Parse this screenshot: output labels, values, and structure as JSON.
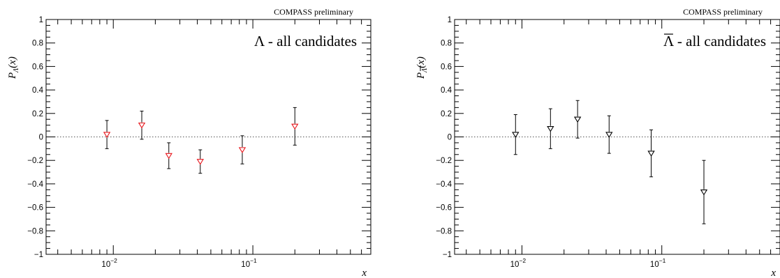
{
  "chart_data": [
    {
      "type": "scatter",
      "header": "COMPASS preliminary",
      "annotation": "Λ - all candidates",
      "ylabel_main": "P",
      "ylabel_sub": "Λ",
      "ylabel_arg": "(x)",
      "xlabel": "x",
      "xscale": "log",
      "xlim": [
        0.0033,
        0.7
      ],
      "ylim": [
        -1,
        1
      ],
      "ytick_values": [
        -1,
        -0.8,
        -0.6,
        -0.4,
        -0.2,
        0,
        0.2,
        0.4,
        0.6,
        0.8,
        1
      ],
      "ytick_labels": [
        "−1",
        "−0.8",
        "−0.6",
        "−0.4",
        "−0.2",
        "0",
        "0.2",
        "0.4",
        "0.6",
        "0.8",
        "1"
      ],
      "xticks_major": [
        {
          "value": 0.01,
          "base": "10",
          "exp": "−2"
        },
        {
          "value": 0.1,
          "base": "10",
          "exp": "−1"
        }
      ],
      "zero_line": true,
      "marker": "open-triangle-down",
      "marker_color": "#e8141a",
      "points": [
        {
          "x": 0.009,
          "y": 0.02,
          "err": 0.12
        },
        {
          "x": 0.016,
          "y": 0.1,
          "err": 0.12
        },
        {
          "x": 0.025,
          "y": -0.16,
          "err": 0.11
        },
        {
          "x": 0.042,
          "y": -0.21,
          "err": 0.1
        },
        {
          "x": 0.084,
          "y": -0.11,
          "err": 0.12
        },
        {
          "x": 0.2,
          "y": 0.09,
          "err": 0.16
        }
      ]
    },
    {
      "type": "scatter",
      "header": "COMPASS preliminary",
      "annotation": "Λ - all candidates",
      "annotation_overline": true,
      "ylabel_main": "P",
      "ylabel_sub": "Λ",
      "ylabel_sub_overline": true,
      "ylabel_arg": "(x)",
      "xlabel": "x",
      "xscale": "log",
      "xlim": [
        0.0033,
        0.7
      ],
      "ylim": [
        -1,
        1
      ],
      "ytick_values": [
        -1,
        -0.8,
        -0.6,
        -0.4,
        -0.2,
        0,
        0.2,
        0.4,
        0.6,
        0.8,
        1
      ],
      "ytick_labels": [
        "−1",
        "−0.8",
        "−0.6",
        "−0.4",
        "−0.2",
        "0",
        "0.2",
        "0.4",
        "0.6",
        "0.8",
        "1"
      ],
      "xticks_major": [
        {
          "value": 0.01,
          "base": "10",
          "exp": "−2"
        },
        {
          "value": 0.1,
          "base": "10",
          "exp": "−1"
        }
      ],
      "zero_line": true,
      "marker": "open-triangle-down",
      "marker_color": "#000000",
      "points": [
        {
          "x": 0.009,
          "y": 0.02,
          "err": 0.17
        },
        {
          "x": 0.016,
          "y": 0.07,
          "err": 0.17
        },
        {
          "x": 0.025,
          "y": 0.15,
          "err": 0.16
        },
        {
          "x": 0.042,
          "y": 0.02,
          "err": 0.16
        },
        {
          "x": 0.084,
          "y": -0.14,
          "err": 0.2
        },
        {
          "x": 0.2,
          "y": -0.47,
          "err": 0.27
        }
      ]
    }
  ]
}
